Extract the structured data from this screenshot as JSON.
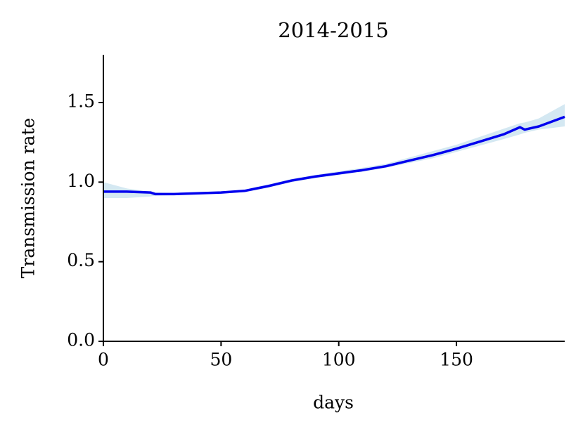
{
  "chart_data": {
    "type": "line",
    "title": "2014-2015",
    "x_label": "days",
    "y_label": "Transmission rate",
    "x": [
      0,
      10,
      20,
      22,
      30,
      40,
      50,
      60,
      65,
      70,
      80,
      90,
      100,
      110,
      120,
      130,
      140,
      150,
      160,
      170,
      177,
      179,
      185,
      196
    ],
    "series": [
      {
        "color": "#0000ee",
        "values": [
          0.94,
          0.94,
          0.935,
          0.925,
          0.925,
          0.93,
          0.935,
          0.945,
          0.96,
          0.975,
          1.01,
          1.035,
          1.055,
          1.075,
          1.1,
          1.135,
          1.17,
          1.21,
          1.255,
          1.3,
          1.345,
          1.33,
          1.35,
          1.41
        ]
      }
    ],
    "band": {
      "color": "#d4e8f2",
      "lower": [
        0.9,
        0.9,
        0.91,
        0.915,
        0.918,
        0.922,
        0.928,
        0.938,
        0.95,
        0.965,
        1.0,
        1.025,
        1.045,
        1.065,
        1.09,
        1.12,
        1.15,
        1.19,
        1.23,
        1.27,
        1.3,
        1.31,
        1.33,
        1.35
      ],
      "upper": [
        1.0,
        0.96,
        0.94,
        0.935,
        0.932,
        0.938,
        0.942,
        0.952,
        0.97,
        0.985,
        1.02,
        1.045,
        1.068,
        1.09,
        1.115,
        1.155,
        1.195,
        1.235,
        1.285,
        1.335,
        1.37,
        1.375,
        1.4,
        1.49
      ]
    },
    "xlim": [
      0,
      196
    ],
    "ylim": [
      0,
      1.8
    ],
    "xticks": [
      0,
      50,
      100,
      150
    ],
    "yticks": [
      {
        "value": 0,
        "label": "0.0"
      },
      {
        "value": 0.5,
        "label": "0.5"
      },
      {
        "value": 1,
        "label": "1.0"
      },
      {
        "value": 1.5,
        "label": "1.5"
      }
    ]
  }
}
